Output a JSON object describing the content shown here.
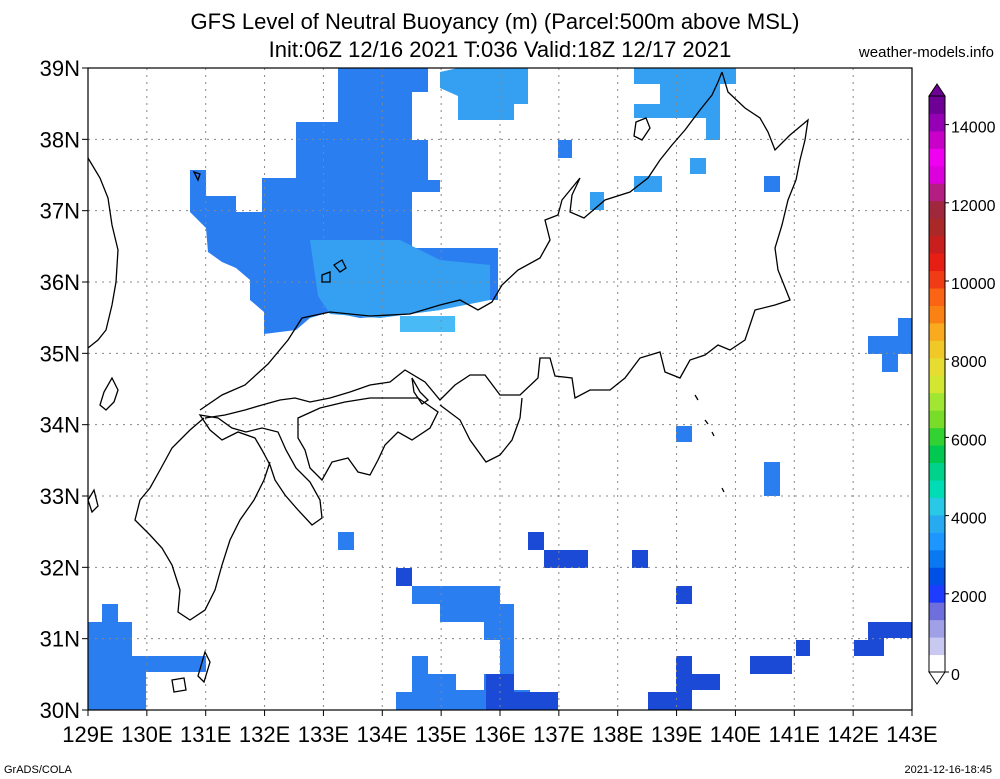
{
  "title": {
    "line1": "GFS Level of Neutral Buoyancy (m) (Parcel:500m above MSL)",
    "line2": "Init:06Z 12/16 2021 T:036 Valid:18Z 12/17 2021"
  },
  "site": "weather-models.info",
  "footer": {
    "left": "GrADS/COLA",
    "right": "2021-12-16-18:45"
  },
  "map": {
    "lon_range": [
      129,
      143
    ],
    "lat_range": [
      30,
      39
    ],
    "x_ticks": [
      "129E",
      "130E",
      "131E",
      "132E",
      "133E",
      "134E",
      "135E",
      "136E",
      "137E",
      "138E",
      "139E",
      "140E",
      "141E",
      "142E",
      "143E"
    ],
    "y_ticks": [
      "30N",
      "31N",
      "32N",
      "33N",
      "34N",
      "35N",
      "36N",
      "37N",
      "38N",
      "39N"
    ],
    "grid": true
  },
  "colorbar": {
    "labels": [
      "0",
      "2000",
      "4000",
      "6000",
      "8000",
      "10000",
      "12000",
      "14000"
    ],
    "colors": [
      "#ffffff",
      "#c8c8f0",
      "#a0a0e6",
      "#6e6edc",
      "#1e3cff",
      "#0050e6",
      "#0a78f0",
      "#1e96ff",
      "#28aaf0",
      "#28c8e6",
      "#00dcb4",
      "#00d28c",
      "#00c850",
      "#32d232",
      "#78dc28",
      "#a0e632",
      "#d2e632",
      "#e6dc32",
      "#f0c828",
      "#faaa1e",
      "#fa8214",
      "#fa6414",
      "#f03c14",
      "#e61e14",
      "#c81e1e",
      "#aa2828",
      "#a0283c",
      "#b41e82",
      "#dc00dc",
      "#f000f0",
      "#c800c8",
      "#9600b4",
      "#6e0096"
    ]
  },
  "fields": {
    "colors": {
      "dark_blue": "#1a4ad6",
      "blue": "#2a7ef0",
      "light_blue": "#35a0f2",
      "cyan": "#48baf5"
    }
  }
}
